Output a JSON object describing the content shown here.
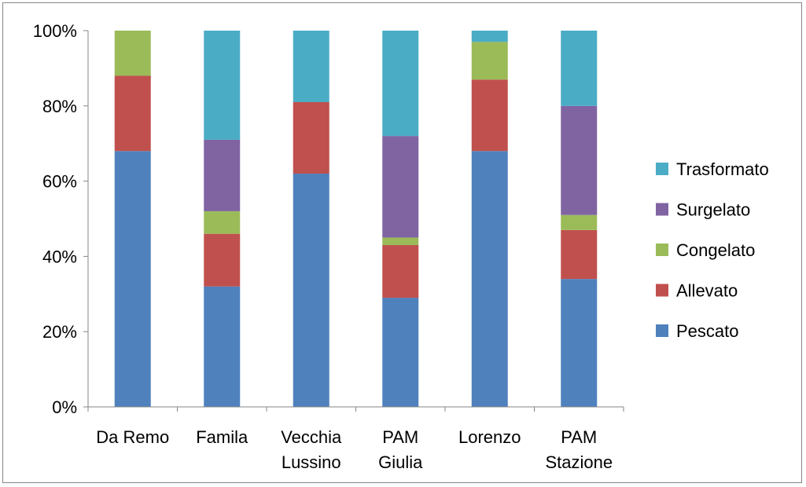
{
  "chart_data": {
    "type": "bar",
    "stacked": true,
    "normalized": true,
    "title": "",
    "xlabel": "",
    "ylabel": "",
    "ylim": [
      0,
      100
    ],
    "yticks": [
      "0%",
      "20%",
      "40%",
      "60%",
      "80%",
      "100%"
    ],
    "grid": false,
    "legend_position": "right",
    "categories": [
      [
        "Da Remo"
      ],
      [
        "Famila"
      ],
      [
        "Vecchia",
        "Lussino"
      ],
      [
        "PAM",
        "Giulia"
      ],
      [
        "Lorenzo"
      ],
      [
        "PAM",
        "Stazione"
      ]
    ],
    "series": [
      {
        "name": "Pescato",
        "color": "#4F81BD",
        "values": [
          68,
          32,
          62,
          29,
          68,
          34
        ]
      },
      {
        "name": "Allevato",
        "color": "#C0504D",
        "values": [
          20,
          14,
          19,
          14,
          19,
          13
        ]
      },
      {
        "name": "Congelato",
        "color": "#9BBB59",
        "values": [
          12,
          6,
          0,
          2,
          10,
          4
        ]
      },
      {
        "name": "Surgelato",
        "color": "#8064A2",
        "values": [
          0,
          19,
          0,
          27,
          0,
          29
        ]
      },
      {
        "name": "Trasformato",
        "color": "#4BACC6",
        "values": [
          0,
          29,
          19,
          28,
          3,
          20
        ]
      }
    ]
  }
}
